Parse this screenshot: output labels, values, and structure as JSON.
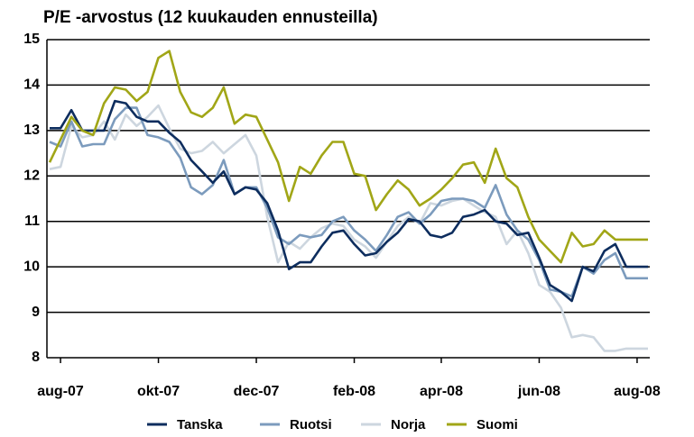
{
  "chart_data": {
    "type": "line",
    "title": "P/E -arvostus (12 kuukauden ennusteilla)",
    "categories": [
      null,
      "aug-07",
      null,
      null,
      null,
      null,
      null,
      null,
      null,
      null,
      "okt-07",
      null,
      null,
      null,
      null,
      null,
      null,
      null,
      null,
      "dec-07",
      null,
      null,
      null,
      null,
      null,
      null,
      null,
      null,
      "feb-08",
      null,
      null,
      null,
      null,
      null,
      null,
      null,
      "apr-08",
      null,
      null,
      null,
      null,
      null,
      null,
      null,
      null,
      "jun-08",
      null,
      null,
      null,
      null,
      null,
      null,
      null,
      null,
      "aug-08",
      null
    ],
    "ylim": [
      8,
      15
    ],
    "yticks": [
      8,
      9,
      10,
      11,
      12,
      13,
      14,
      15
    ],
    "grid": true,
    "legend": "bottom",
    "series": [
      {
        "name": "Tanska",
        "color": "#0d2d5e",
        "values": [
          13.05,
          13.05,
          13.45,
          13.0,
          13.0,
          13.0,
          13.65,
          13.6,
          13.3,
          13.2,
          13.2,
          12.95,
          12.75,
          12.35,
          12.1,
          11.85,
          12.1,
          11.6,
          11.75,
          11.7,
          11.4,
          10.8,
          9.95,
          10.1,
          10.1,
          10.45,
          10.75,
          10.8,
          10.5,
          10.25,
          10.3,
          10.55,
          10.75,
          11.05,
          11.0,
          10.7,
          10.65,
          10.75,
          11.1,
          11.15,
          11.25,
          11.0,
          10.95,
          10.7,
          10.75,
          10.2,
          9.6,
          9.45,
          9.25,
          10.0,
          9.9,
          10.35,
          10.5,
          10.0,
          10.0,
          10.0
        ]
      },
      {
        "name": "Ruotsi",
        "color": "#7c9bbd",
        "values": [
          12.75,
          12.65,
          13.2,
          12.65,
          12.7,
          12.7,
          13.25,
          13.5,
          13.5,
          12.9,
          12.85,
          12.75,
          12.4,
          11.75,
          11.6,
          11.8,
          12.35,
          11.6,
          11.75,
          11.75,
          11.3,
          10.65,
          10.5,
          10.7,
          10.65,
          10.7,
          11.0,
          11.1,
          10.8,
          10.6,
          10.35,
          10.7,
          11.1,
          11.2,
          10.95,
          11.15,
          11.45,
          11.5,
          11.5,
          11.45,
          11.3,
          11.8,
          11.15,
          10.8,
          10.6,
          10.15,
          9.5,
          9.45,
          9.35,
          10.0,
          9.85,
          10.15,
          10.3,
          9.75,
          9.75,
          9.75
        ]
      },
      {
        "name": "Norja",
        "color": "#cdd6df",
        "values": [
          12.15,
          12.2,
          13.1,
          12.85,
          12.9,
          13.2,
          12.8,
          13.35,
          13.1,
          13.3,
          13.55,
          13.05,
          12.6,
          12.5,
          12.55,
          12.75,
          12.5,
          12.7,
          12.9,
          12.45,
          11.1,
          10.1,
          10.55,
          10.4,
          10.65,
          10.85,
          10.95,
          10.9,
          10.6,
          10.45,
          10.2,
          10.55,
          10.9,
          11.1,
          10.95,
          11.4,
          11.35,
          11.45,
          11.5,
          11.35,
          11.2,
          11.1,
          10.5,
          10.8,
          10.3,
          9.6,
          9.45,
          9.1,
          8.45,
          8.5,
          8.45,
          8.15,
          8.15,
          8.2,
          8.2,
          8.2
        ]
      },
      {
        "name": "Suomi",
        "color": "#a1a617",
        "values": [
          12.3,
          12.8,
          13.3,
          13.0,
          12.9,
          13.6,
          13.95,
          13.9,
          13.65,
          13.85,
          14.6,
          14.75,
          13.85,
          13.4,
          13.3,
          13.5,
          13.95,
          13.15,
          13.35,
          13.3,
          12.8,
          12.3,
          11.45,
          12.2,
          12.05,
          12.45,
          12.75,
          12.75,
          12.05,
          12.0,
          11.25,
          11.6,
          11.9,
          11.7,
          11.35,
          11.5,
          11.7,
          11.95,
          12.25,
          12.3,
          11.85,
          12.6,
          11.95,
          11.75,
          11.1,
          10.6,
          10.35,
          10.1,
          10.75,
          10.45,
          10.5,
          10.8,
          10.6,
          10.6,
          10.6,
          10.6
        ]
      }
    ]
  }
}
